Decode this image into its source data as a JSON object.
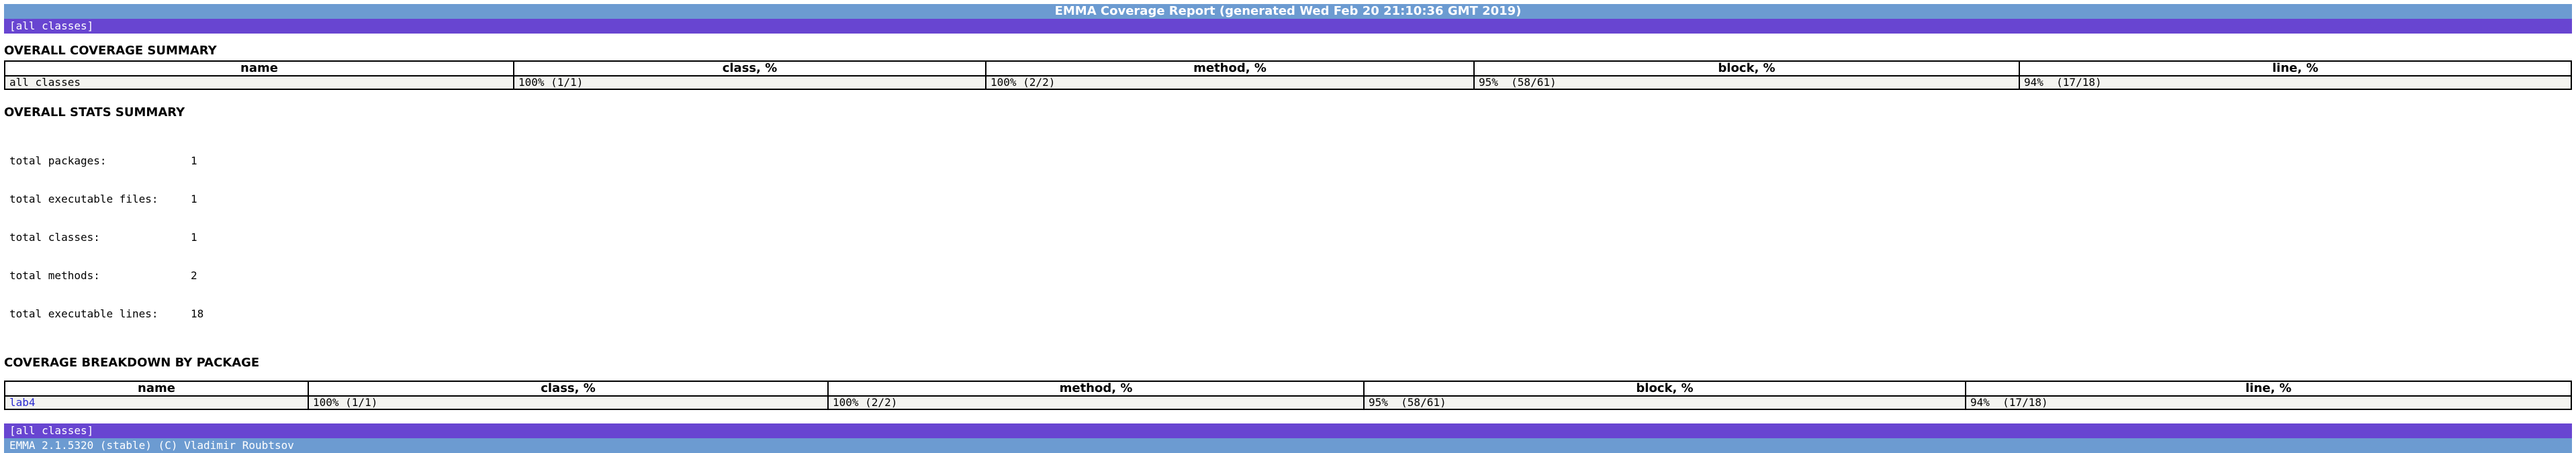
{
  "header": {
    "title": "EMMA Coverage Report (generated Wed Feb 20 21:10:36 GMT 2019)",
    "nav_link": "[all classes]"
  },
  "overall_coverage": {
    "heading": "OVERALL COVERAGE SUMMARY",
    "columns": [
      "name",
      "class, %",
      "method, %",
      "block, %",
      "line, %"
    ],
    "row": [
      "all classes",
      "100% (1/1)",
      "100% (2/2)",
      "95%  (58/61)",
      "94%  (17/18)"
    ]
  },
  "overall_stats": {
    "heading": "OVERALL STATS SUMMARY",
    "items": [
      {
        "label": "total packages:",
        "value": "1"
      },
      {
        "label": "total executable files:",
        "value": "1"
      },
      {
        "label": "total classes:",
        "value": "1"
      },
      {
        "label": "total methods:",
        "value": "2"
      },
      {
        "label": "total executable lines:",
        "value": "18"
      }
    ]
  },
  "package_breakdown": {
    "heading": "COVERAGE BREAKDOWN BY PACKAGE",
    "columns": [
      "name",
      "class, %",
      "method, %",
      "block, %",
      "line, %"
    ],
    "rows": [
      [
        "lab4",
        "100% (1/1)",
        "100% (2/2)",
        "95%  (58/61)",
        "94%  (17/18)"
      ]
    ]
  },
  "footer": {
    "nav_link": "[all classes]",
    "version": "EMMA 2.1.5320 (stable) (C) Vladimir Roubtsov"
  },
  "colors": {
    "title_bar": "#6c9bd1",
    "nav_bar": "#6845d1",
    "link": "#2a2ad0"
  }
}
